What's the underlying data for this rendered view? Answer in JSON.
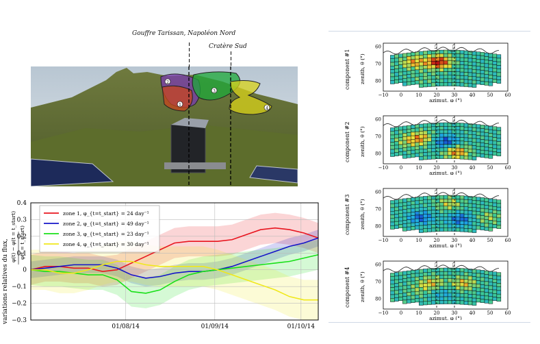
{
  "photo": {
    "label_top": "Gouffre Tarissan, Napoléon Nord",
    "label_sud": "Cratère Sud",
    "zones": [
      {
        "id": "1",
        "color": "#c8461e"
      },
      {
        "id": "2",
        "color": "#7a3bb0"
      },
      {
        "id": "3",
        "color": "#1ea83a"
      },
      {
        "id": "4",
        "color": "#d8d21a"
      }
    ]
  },
  "chart_data": [
    {
      "type": "line",
      "ylabel_top": "φ(t) − φ(t = t_start)",
      "ylabel_bottom": "φ(t = t_start)",
      "ylabel": "variations relatives du flux,",
      "ylim": [
        -0.3,
        0.4
      ],
      "yticks": [
        "0.4",
        "0.3",
        "0.2",
        "0.1",
        "0",
        "−0.1",
        "−0.2",
        "−0.3"
      ],
      "xticks": [
        "01/08/14",
        "01/09/14",
        "01/10/14"
      ],
      "xtick_days": [
        33,
        64,
        94
      ],
      "xlim_days": [
        0,
        100
      ],
      "grid": true,
      "legend_position": "top-left",
      "series": [
        {
          "name": "zone 1, φ_{t=t_start} = 24 day⁻¹",
          "color": "#e8141e",
          "x": [
            0,
            5,
            10,
            15,
            20,
            25,
            30,
            35,
            40,
            45,
            50,
            55,
            60,
            65,
            70,
            75,
            80,
            85,
            90,
            95,
            100
          ],
          "y": [
            0.0,
            0.02,
            0.02,
            0.01,
            0.01,
            -0.01,
            0.0,
            0.04,
            0.08,
            0.12,
            0.16,
            0.17,
            0.17,
            0.17,
            0.18,
            0.21,
            0.24,
            0.25,
            0.24,
            0.22,
            0.19
          ],
          "band": 0.09
        },
        {
          "name": "zone 2, φ_{t=t_start} = 49 day⁻¹",
          "color": "#1414c8",
          "x": [
            0,
            5,
            10,
            15,
            20,
            25,
            30,
            35,
            40,
            45,
            50,
            55,
            60,
            65,
            70,
            75,
            80,
            85,
            90,
            95,
            100
          ],
          "y": [
            0.0,
            0.01,
            0.02,
            0.03,
            0.03,
            0.03,
            0.01,
            -0.03,
            -0.05,
            -0.04,
            -0.02,
            -0.01,
            -0.01,
            0.0,
            0.02,
            0.05,
            0.08,
            0.11,
            0.14,
            0.16,
            0.19
          ],
          "band": 0.05
        },
        {
          "name": "zone 3, φ_{t=t_start} = 23 day⁻¹",
          "color": "#18e018",
          "x": [
            0,
            5,
            10,
            15,
            20,
            25,
            30,
            35,
            40,
            45,
            50,
            55,
            60,
            65,
            70,
            75,
            80,
            85,
            90,
            95,
            100
          ],
          "y": [
            0.0,
            -0.01,
            -0.01,
            -0.02,
            -0.03,
            -0.03,
            -0.06,
            -0.13,
            -0.14,
            -0.12,
            -0.07,
            -0.03,
            -0.01,
            0.0,
            0.01,
            0.02,
            0.03,
            0.04,
            0.05,
            0.07,
            0.09
          ],
          "band": 0.09
        },
        {
          "name": "zone 4, φ_{t=t_start} = 30 day⁻¹",
          "color": "#f0e81a",
          "x": [
            0,
            5,
            10,
            15,
            20,
            25,
            30,
            35,
            40,
            45,
            50,
            55,
            60,
            65,
            70,
            75,
            80,
            85,
            90,
            95,
            100
          ],
          "y": [
            0.0,
            0.0,
            -0.02,
            -0.02,
            0.0,
            0.03,
            0.05,
            0.05,
            0.03,
            0.02,
            0.02,
            0.02,
            0.02,
            0.0,
            -0.03,
            -0.06,
            -0.09,
            -0.12,
            -0.16,
            -0.18,
            -0.18
          ],
          "band": 0.12
        }
      ]
    },
    {
      "type": "heatmap",
      "xlabel": "azimut, φ (°)",
      "ylabel": "zenith, θ (°)",
      "xticks": [
        "−10",
        "0",
        "10",
        "20",
        "30",
        "40",
        "50",
        "60"
      ],
      "xlim": [
        -10,
        60
      ],
      "yticks": [
        "60",
        "70",
        "80"
      ],
      "ylim": [
        58,
        86
      ],
      "vlines": [
        {
          "x": 20,
          "label": "CT"
        },
        {
          "x": 30,
          "label": "CS"
        }
      ],
      "components": [
        {
          "name": "component #1",
          "hot": [
            [
              20,
              68,
              1.0
            ],
            [
              6,
              68,
              0.6
            ],
            [
              12,
              78,
              0.15
            ]
          ]
        },
        {
          "name": "component #2",
          "hot": [
            [
              24,
              72,
              -0.7
            ],
            [
              30,
              78,
              0.7
            ],
            [
              10,
              70,
              0.6
            ],
            [
              2,
              72,
              0.3
            ]
          ]
        },
        {
          "name": "component #3",
          "hot": [
            [
              10,
              74,
              -0.6
            ],
            [
              32,
              75,
              -0.6
            ],
            [
              26,
              66,
              0.4
            ],
            [
              48,
              74,
              0.3
            ]
          ]
        },
        {
          "name": "component #4",
          "hot": [
            [
              16,
              70,
              0.5
            ],
            [
              34,
              70,
              0.5
            ],
            [
              22,
              76,
              -0.3
            ],
            [
              8,
              74,
              0.2
            ]
          ]
        }
      ]
    }
  ]
}
